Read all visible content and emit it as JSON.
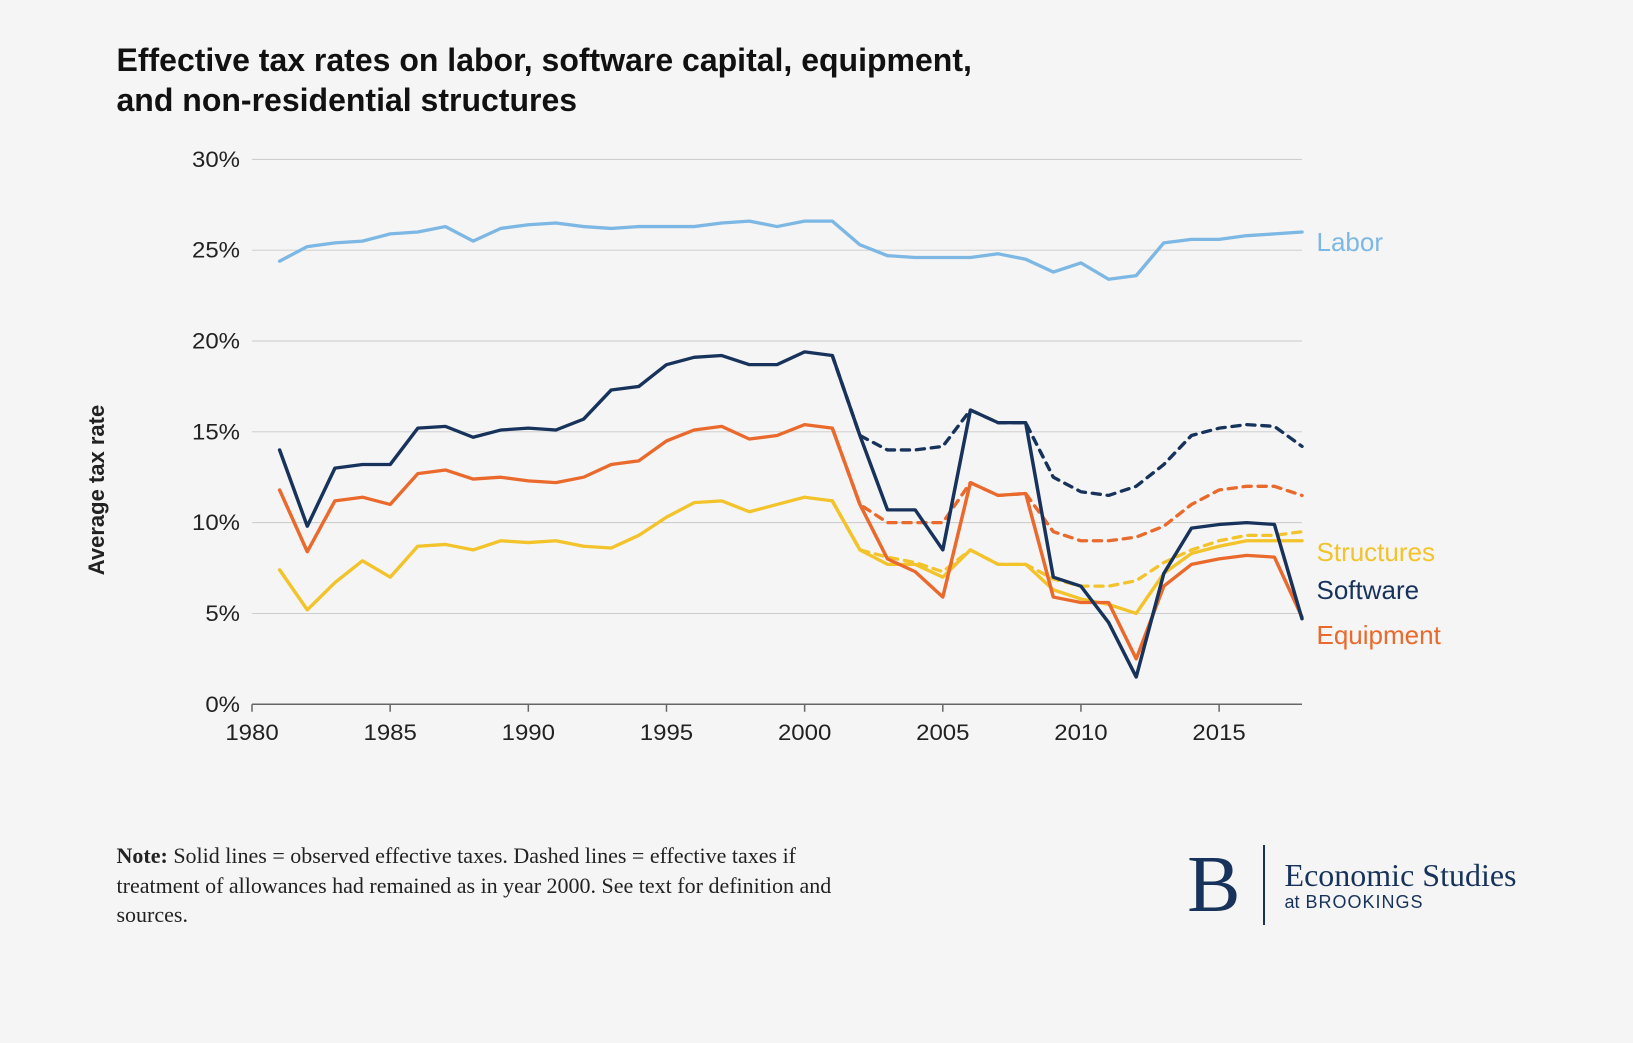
{
  "title_line1": "Effective tax rates on labor, software capital, equipment,",
  "title_line2": "and non-residential structures",
  "y_axis_label": "Average tax rate",
  "note_bold": "Note:",
  "note_text": " Solid lines = observed effective taxes. Dashed lines = effective taxes if treatment of allowances had remained as in year 2000. See text for definition and sources.",
  "brand_letter": "B",
  "brand_main": "Economic Studies",
  "brand_sub_at": "at",
  "brand_sub_name": " BROOKINGS",
  "chart": {
    "type": "line",
    "background_color": "#f5f5f5",
    "grid_color": "#c9c9c9",
    "axis_color": "#666",
    "xlim": [
      1980,
      2018
    ],
    "ylim": [
      0,
      30
    ],
    "y_ticks": [
      0,
      5,
      10,
      15,
      20,
      25,
      30
    ],
    "y_tick_labels": [
      "0%",
      "5%",
      "10%",
      "15%",
      "20%",
      "25%",
      "30%"
    ],
    "x_ticks": [
      1980,
      1985,
      1990,
      1995,
      2000,
      2005,
      2010,
      2015
    ],
    "x_tick_labels": [
      "1980",
      "1985",
      "1990",
      "1995",
      "2000",
      "2005",
      "2010",
      "2015"
    ],
    "line_width": 3.5,
    "dash_pattern": "8,7",
    "label_fontsize": 26,
    "tick_fontsize": 24,
    "series": {
      "labor": {
        "label": "Labor",
        "color": "#7db7e3",
        "label_y": 25.8,
        "solid": [
          [
            1981,
            24.4
          ],
          [
            1982,
            25.2
          ],
          [
            1983,
            25.4
          ],
          [
            1984,
            25.5
          ],
          [
            1985,
            25.9
          ],
          [
            1986,
            26.0
          ],
          [
            1987,
            26.3
          ],
          [
            1988,
            25.5
          ],
          [
            1989,
            26.2
          ],
          [
            1990,
            26.4
          ],
          [
            1991,
            26.5
          ],
          [
            1992,
            26.3
          ],
          [
            1993,
            26.2
          ],
          [
            1994,
            26.3
          ],
          [
            1995,
            26.3
          ],
          [
            1996,
            26.3
          ],
          [
            1997,
            26.5
          ],
          [
            1998,
            26.6
          ],
          [
            1999,
            26.3
          ],
          [
            2000,
            26.6
          ],
          [
            2001,
            26.6
          ],
          [
            2002,
            25.3
          ],
          [
            2003,
            24.7
          ],
          [
            2004,
            24.6
          ],
          [
            2005,
            24.6
          ],
          [
            2006,
            24.6
          ],
          [
            2007,
            24.8
          ],
          [
            2008,
            24.5
          ],
          [
            2009,
            23.8
          ],
          [
            2010,
            24.3
          ],
          [
            2011,
            23.4
          ],
          [
            2012,
            23.6
          ],
          [
            2013,
            25.4
          ],
          [
            2014,
            25.6
          ],
          [
            2015,
            25.6
          ],
          [
            2016,
            25.8
          ],
          [
            2017,
            25.9
          ],
          [
            2018,
            26.0
          ]
        ]
      },
      "software": {
        "label": "Software",
        "color": "#18335b",
        "label_y": 7.8,
        "solid": [
          [
            1981,
            14.0
          ],
          [
            1982,
            9.8
          ],
          [
            1983,
            13.0
          ],
          [
            1984,
            13.2
          ],
          [
            1985,
            13.2
          ],
          [
            1986,
            15.2
          ],
          [
            1987,
            15.3
          ],
          [
            1988,
            14.7
          ],
          [
            1989,
            15.1
          ],
          [
            1990,
            15.2
          ],
          [
            1991,
            15.1
          ],
          [
            1992,
            15.7
          ],
          [
            1993,
            17.3
          ],
          [
            1994,
            17.5
          ],
          [
            1995,
            18.7
          ],
          [
            1996,
            19.1
          ],
          [
            1997,
            19.2
          ],
          [
            1998,
            18.7
          ],
          [
            1999,
            18.7
          ],
          [
            2000,
            19.4
          ],
          [
            2001,
            19.2
          ],
          [
            2002,
            14.8
          ],
          [
            2003,
            10.7
          ],
          [
            2004,
            10.7
          ],
          [
            2005,
            8.5
          ],
          [
            2006,
            16.2
          ],
          [
            2007,
            15.5
          ],
          [
            2008,
            15.5
          ],
          [
            2009,
            7.0
          ],
          [
            2010,
            6.5
          ],
          [
            2011,
            4.5
          ],
          [
            2012,
            1.5
          ],
          [
            2013,
            7.2
          ],
          [
            2014,
            9.7
          ],
          [
            2015,
            9.9
          ],
          [
            2016,
            10.0
          ],
          [
            2017,
            9.9
          ],
          [
            2018,
            4.7
          ]
        ],
        "dashed": [
          [
            2001,
            19.2
          ],
          [
            2002,
            14.8
          ],
          [
            2003,
            14.0
          ],
          [
            2004,
            14.0
          ],
          [
            2005,
            14.2
          ],
          [
            2006,
            16.2
          ],
          [
            2007,
            15.5
          ],
          [
            2008,
            15.5
          ],
          [
            2009,
            12.5
          ],
          [
            2010,
            11.7
          ],
          [
            2011,
            11.5
          ],
          [
            2012,
            12.0
          ],
          [
            2013,
            13.2
          ],
          [
            2014,
            14.8
          ],
          [
            2015,
            15.2
          ],
          [
            2016,
            15.4
          ],
          [
            2017,
            15.3
          ],
          [
            2018,
            14.2
          ]
        ]
      },
      "equipment": {
        "label": "Equipment",
        "color": "#e96a2c",
        "label_y": 5.5,
        "solid": [
          [
            1981,
            11.8
          ],
          [
            1982,
            8.4
          ],
          [
            1983,
            11.2
          ],
          [
            1984,
            11.4
          ],
          [
            1985,
            11.0
          ],
          [
            1986,
            12.7
          ],
          [
            1987,
            12.9
          ],
          [
            1988,
            12.4
          ],
          [
            1989,
            12.5
          ],
          [
            1990,
            12.3
          ],
          [
            1991,
            12.2
          ],
          [
            1992,
            12.5
          ],
          [
            1993,
            13.2
          ],
          [
            1994,
            13.4
          ],
          [
            1995,
            14.5
          ],
          [
            1996,
            15.1
          ],
          [
            1997,
            15.3
          ],
          [
            1998,
            14.6
          ],
          [
            1999,
            14.8
          ],
          [
            2000,
            15.4
          ],
          [
            2001,
            15.2
          ],
          [
            2002,
            11.0
          ],
          [
            2003,
            8.0
          ],
          [
            2004,
            7.3
          ],
          [
            2005,
            5.9
          ],
          [
            2006,
            12.2
          ],
          [
            2007,
            11.5
          ],
          [
            2008,
            11.6
          ],
          [
            2009,
            5.9
          ],
          [
            2010,
            5.6
          ],
          [
            2011,
            5.6
          ],
          [
            2012,
            2.5
          ],
          [
            2013,
            6.5
          ],
          [
            2014,
            7.7
          ],
          [
            2015,
            8.0
          ],
          [
            2016,
            8.2
          ],
          [
            2017,
            8.1
          ],
          [
            2018,
            4.8
          ]
        ],
        "dashed": [
          [
            2001,
            15.2
          ],
          [
            2002,
            11.0
          ],
          [
            2003,
            10.0
          ],
          [
            2004,
            10.0
          ],
          [
            2005,
            10.0
          ],
          [
            2006,
            12.2
          ],
          [
            2007,
            11.5
          ],
          [
            2008,
            11.6
          ],
          [
            2009,
            9.5
          ],
          [
            2010,
            9.0
          ],
          [
            2011,
            9.0
          ],
          [
            2012,
            9.2
          ],
          [
            2013,
            9.8
          ],
          [
            2014,
            11.0
          ],
          [
            2015,
            11.8
          ],
          [
            2016,
            12.0
          ],
          [
            2017,
            12.0
          ],
          [
            2018,
            11.5
          ]
        ]
      },
      "structures": {
        "label": "Structures",
        "color": "#f2c32b",
        "label_y": 9.8,
        "solid": [
          [
            1981,
            7.4
          ],
          [
            1982,
            5.2
          ],
          [
            1983,
            6.7
          ],
          [
            1984,
            7.9
          ],
          [
            1985,
            7.0
          ],
          [
            1986,
            8.7
          ],
          [
            1987,
            8.8
          ],
          [
            1988,
            8.5
          ],
          [
            1989,
            9.0
          ],
          [
            1990,
            8.9
          ],
          [
            1991,
            9.0
          ],
          [
            1992,
            8.7
          ],
          [
            1993,
            8.6
          ],
          [
            1994,
            9.3
          ],
          [
            1995,
            10.3
          ],
          [
            1996,
            11.1
          ],
          [
            1997,
            11.2
          ],
          [
            1998,
            10.6
          ],
          [
            1999,
            11.0
          ],
          [
            2000,
            11.4
          ],
          [
            2001,
            11.2
          ],
          [
            2002,
            8.5
          ],
          [
            2003,
            7.7
          ],
          [
            2004,
            7.7
          ],
          [
            2005,
            7.0
          ],
          [
            2006,
            8.5
          ],
          [
            2007,
            7.7
          ],
          [
            2008,
            7.7
          ],
          [
            2009,
            6.3
          ],
          [
            2010,
            5.8
          ],
          [
            2011,
            5.5
          ],
          [
            2012,
            5.0
          ],
          [
            2013,
            7.2
          ],
          [
            2014,
            8.3
          ],
          [
            2015,
            8.7
          ],
          [
            2016,
            9.0
          ],
          [
            2017,
            9.0
          ],
          [
            2018,
            9.0
          ]
        ],
        "dashed": [
          [
            2001,
            11.2
          ],
          [
            2002,
            8.5
          ],
          [
            2003,
            8.1
          ],
          [
            2004,
            7.8
          ],
          [
            2005,
            7.3
          ],
          [
            2006,
            8.5
          ],
          [
            2007,
            7.7
          ],
          [
            2008,
            7.7
          ],
          [
            2009,
            6.9
          ],
          [
            2010,
            6.5
          ],
          [
            2011,
            6.5
          ],
          [
            2012,
            6.8
          ],
          [
            2013,
            7.8
          ],
          [
            2014,
            8.5
          ],
          [
            2015,
            9.0
          ],
          [
            2016,
            9.3
          ],
          [
            2017,
            9.3
          ],
          [
            2018,
            9.5
          ]
        ]
      }
    }
  }
}
